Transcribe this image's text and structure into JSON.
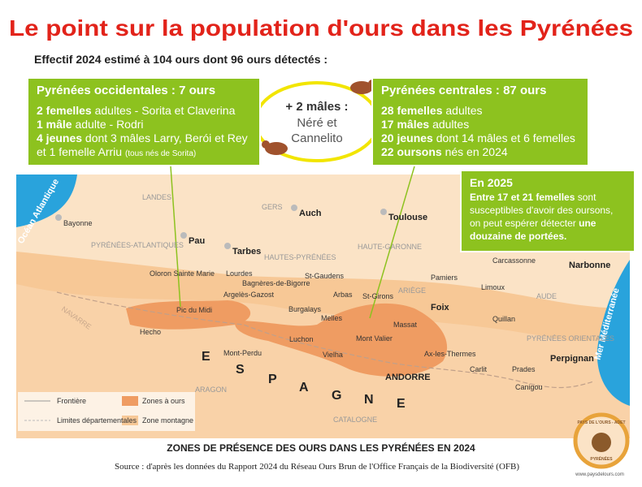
{
  "title": "Le point sur la population d'ours dans les Pyrénées",
  "subtitle": "Effectif 2024 estimé à 104 ours dont 96 ours détectés :",
  "west_box": {
    "heading": "Pyrénées occidentales : 7 ours",
    "lines": [
      {
        "strong": "2 femelles",
        "rest": "adultes - Sorita et Claverina"
      },
      {
        "strong": "1 mâle",
        "rest": "adulte - Rodri"
      },
      {
        "strong": "4 jeunes",
        "rest": "dont 3 mâles Larry, Berói et Rey"
      },
      {
        "strong": "",
        "rest": "et 1 femelle Arriu",
        "note": "(tous nés de Sorita)"
      }
    ]
  },
  "center": {
    "heading": "+ 2 mâles :",
    "names": [
      "Néré et",
      "Cannelito"
    ]
  },
  "central_box": {
    "heading": "Pyrénées centrales : 87 ours",
    "lines": [
      {
        "strong": "28 femelles",
        "rest": "adultes"
      },
      {
        "strong": "17 mâles",
        "rest": "adultes"
      },
      {
        "strong": "20 jeunes",
        "rest": "dont 14 mâles et 6 femelles"
      },
      {
        "strong": "22 oursons",
        "rest": "nés en 2024"
      }
    ]
  },
  "outlook_box": {
    "heading": "En 2025",
    "strong1": "Entre 17 et 21 femelles",
    "text": "sont susceptibles d'avoir des oursons, on peut espérer détecter",
    "strong2": "une douzaine de portées."
  },
  "map_labels": [
    "Océan Atlantique",
    "Bayonne",
    "LANDES",
    "GERS",
    "Auch",
    "Toulouse",
    "Pau",
    "Tarbes",
    "PYRÉNÉES-ATLANTIQUES",
    "HAUTES-PYRÉNÉES",
    "HAUTE-GARONNE",
    "Carcassonne",
    "Narbonne",
    "Oloron Sainte Marie",
    "Lourdes",
    "Bagnères-de-Bigorre",
    "St-Gaudens",
    "Pamiers",
    "ARIÈGE",
    "Argelès-Gazost",
    "Arbas",
    "St-Girons",
    "Limoux",
    "AUDE",
    "Mer Méditerranée",
    "NAVARRE",
    "Pic du Midi",
    "Burgalays",
    "Foix",
    "Melles",
    "Quillan",
    "Hecho",
    "Massat",
    "Mont Valier",
    "Luchon",
    "PYRÉNÉES ORIENTALES",
    "Mont-Perdu",
    "Vielha",
    "Ax-les-Thermes",
    "Perpignan",
    "Carlit",
    "Prades",
    "ANDORRE",
    "Canigou",
    "ARAGON",
    "CATALOGNE"
  ],
  "espagne_letters": [
    "E",
    "S",
    "P",
    "A",
    "G",
    "N",
    "E"
  ],
  "legend": [
    "Frontière",
    "Limites départementales",
    "Zones à ours",
    "Zone montagne"
  ],
  "caption": "ZONES DE PRÉSENCE DES OURS DANS LES PYRÉNÉES EN 2024",
  "source": "Source : d'après les données du Rapport 2024 du Réseau Ours Brun de l'Office Français de la Biodiversité (OFB)",
  "logo": {
    "top": "PAYS DE L'OURS - ADET",
    "bottom": "PYRÉNÉES",
    "url": "www.paysdelours.com"
  }
}
